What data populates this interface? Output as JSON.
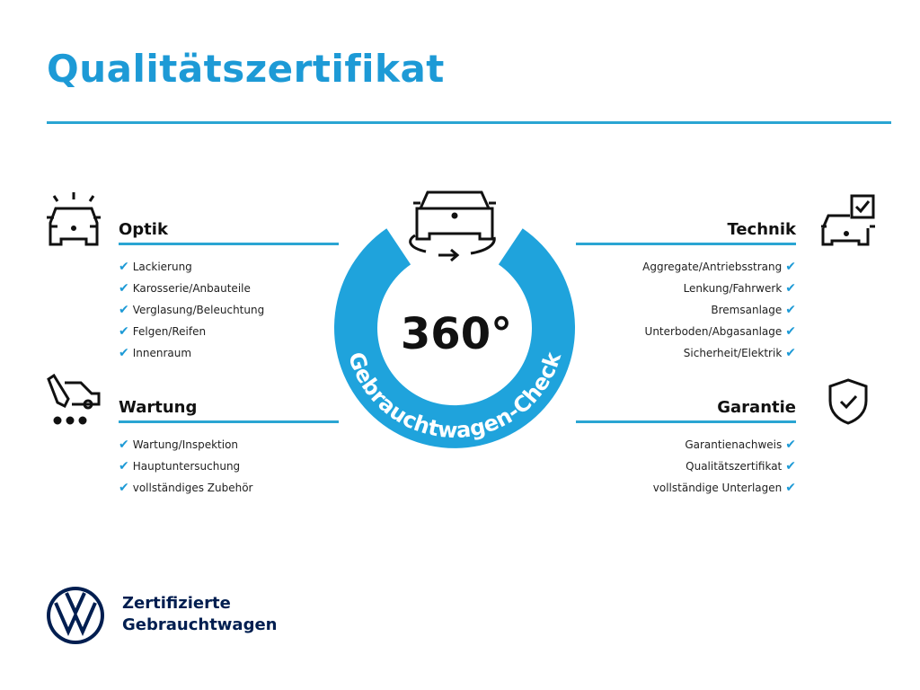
{
  "title": "Qualitätszertifikat",
  "center": {
    "big": "360°",
    "ring_text": "Gebrauchtwagen-Check"
  },
  "sections": {
    "optik": {
      "heading": "Optik",
      "items": [
        "Lackierung",
        "Karosserie/Anbauteile",
        "Verglasung/Beleuchtung",
        "Felgen/Reifen",
        "Innenraum"
      ]
    },
    "wartung": {
      "heading": "Wartung",
      "items": [
        "Wartung/Inspektion",
        "Hauptuntersuchung",
        "vollständiges Zubehör"
      ]
    },
    "technik": {
      "heading": "Technik",
      "items": [
        "Aggregate/Antriebsstrang",
        "Lenkung/Fahrwerk",
        "Bremsanlage",
        "Unterboden/Abgasanlage",
        "Sicherheit/Elektrik"
      ]
    },
    "garantie": {
      "heading": "Garantie",
      "items": [
        "Garantienachweis",
        "Qualitätszertifikat",
        "vollständige Unterlagen"
      ]
    }
  },
  "check": "✔",
  "brand": {
    "line1": "Zertifizierte",
    "line2": "Gebrauchtwagen"
  },
  "colors": {
    "accent": "#1d9ad6",
    "ring": "#1fa3dc",
    "brand": "#001e50"
  }
}
